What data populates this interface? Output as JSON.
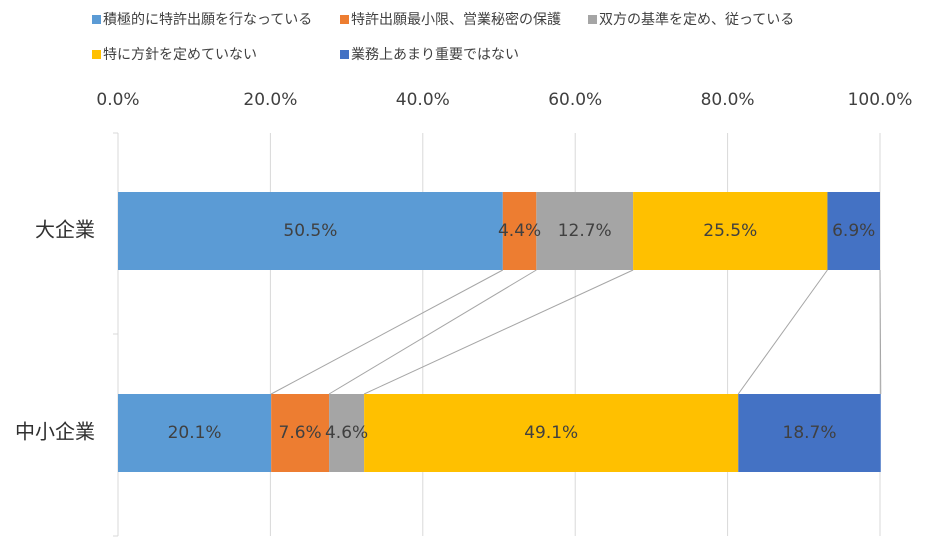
{
  "chart_data": {
    "type": "bar",
    "orientation": "horizontal",
    "stacked": true,
    "percent_stacked": true,
    "categories": [
      "大企業",
      "中小企業"
    ],
    "series": [
      {
        "name": "積極的に特許出願を行なっている",
        "color": "#5B9BD5",
        "values": [
          50.5,
          20.1
        ],
        "labels": [
          "50.5%",
          "20.1%"
        ]
      },
      {
        "name": "特許出願最小限、営業秘密の保護",
        "color": "#ED7D31",
        "values": [
          4.4,
          7.6
        ],
        "labels": [
          "4.4%",
          "7.6%"
        ]
      },
      {
        "name": "双方の基準を定め、従っている",
        "color": "#A5A5A5",
        "values": [
          12.7,
          4.6
        ],
        "labels": [
          "12.7%",
          "4.6%"
        ]
      },
      {
        "name": "特に方針を定めていない",
        "color": "#FFC000",
        "values": [
          25.5,
          49.1
        ],
        "labels": [
          "25.5%",
          "49.1%"
        ]
      },
      {
        "name": "業務上あまり重要ではない",
        "color": "#4472C4",
        "values": [
          6.9,
          18.7
        ],
        "labels": [
          "6.9%",
          "18.7%"
        ]
      }
    ],
    "xlim": [
      0,
      100
    ],
    "x_ticks": [
      "0.0%",
      "20.0%",
      "40.0%",
      "60.0%",
      "80.0%",
      "100.0%"
    ],
    "axis_position": "top",
    "grid": true,
    "series_lines": true,
    "legend_position": "top"
  }
}
